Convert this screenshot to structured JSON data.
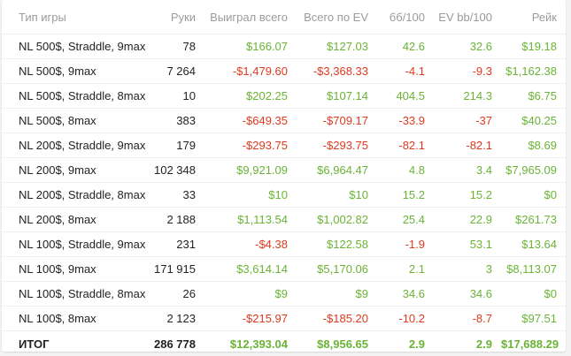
{
  "headers": [
    "Тип игры",
    "Руки",
    "Выиграл всего",
    "Всего по EV",
    "бб/100",
    "EV bb/100",
    "Рейк"
  ],
  "rows": [
    {
      "game": "NL 500$, Straddle, 9max",
      "hands": "78",
      "won": "$166.07",
      "ev": "$127.03",
      "bb100": "42.6",
      "evbb100": "32.6",
      "rake": "$19.18"
    },
    {
      "game": "NL 500$, 9max",
      "hands": "7 264",
      "won": "-$1,479.60",
      "ev": "-$3,368.33",
      "bb100": "-4.1",
      "evbb100": "-9.3",
      "rake": "$1,162.38"
    },
    {
      "game": "NL 500$, Straddle, 8max",
      "hands": "10",
      "won": "$202.25",
      "ev": "$107.14",
      "bb100": "404.5",
      "evbb100": "214.3",
      "rake": "$6.75"
    },
    {
      "game": "NL 500$, 8max",
      "hands": "383",
      "won": "-$649.35",
      "ev": "-$709.17",
      "bb100": "-33.9",
      "evbb100": "-37",
      "rake": "$40.25"
    },
    {
      "game": "NL 200$, Straddle, 9max",
      "hands": "179",
      "won": "-$293.75",
      "ev": "-$293.75",
      "bb100": "-82.1",
      "evbb100": "-82.1",
      "rake": "$8.69"
    },
    {
      "game": "NL 200$, 9max",
      "hands": "102 348",
      "won": "$9,921.09",
      "ev": "$6,964.47",
      "bb100": "4.8",
      "evbb100": "3.4",
      "rake": "$7,965.09"
    },
    {
      "game": "NL 200$, Straddle, 8max",
      "hands": "33",
      "won": "$10",
      "ev": "$10",
      "bb100": "15.2",
      "evbb100": "15.2",
      "rake": "$0"
    },
    {
      "game": "NL 200$, 8max",
      "hands": "2 188",
      "won": "$1,113.54",
      "ev": "$1,002.82",
      "bb100": "25.4",
      "evbb100": "22.9",
      "rake": "$261.73"
    },
    {
      "game": "NL 100$, Straddle, 9max",
      "hands": "231",
      "won": "-$4.38",
      "ev": "$122.58",
      "bb100": "-1.9",
      "evbb100": "53.1",
      "rake": "$13.64"
    },
    {
      "game": "NL 100$, 9max",
      "hands": "171 915",
      "won": "$3,614.14",
      "ev": "$5,170.06",
      "bb100": "2.1",
      "evbb100": "3",
      "rake": "$8,113.07"
    },
    {
      "game": "NL 100$, Straddle, 8max",
      "hands": "26",
      "won": "$9",
      "ev": "$9",
      "bb100": "34.6",
      "evbb100": "34.6",
      "rake": "$0"
    },
    {
      "game": "NL 100$, 8max",
      "hands": "2 123",
      "won": "-$215.97",
      "ev": "-$185.20",
      "bb100": "-10.2",
      "evbb100": "-8.7",
      "rake": "$97.51"
    }
  ],
  "total": {
    "game": "ИТОГ",
    "hands": "286 778",
    "won": "$12,393.04",
    "ev": "$8,956.65",
    "bb100": "2.9",
    "evbb100": "2.9",
    "rake": "$17,688.29"
  },
  "colors": {
    "positive": "#6ab335",
    "negative": "#dd3a1f",
    "header": "#9b9b9b"
  }
}
